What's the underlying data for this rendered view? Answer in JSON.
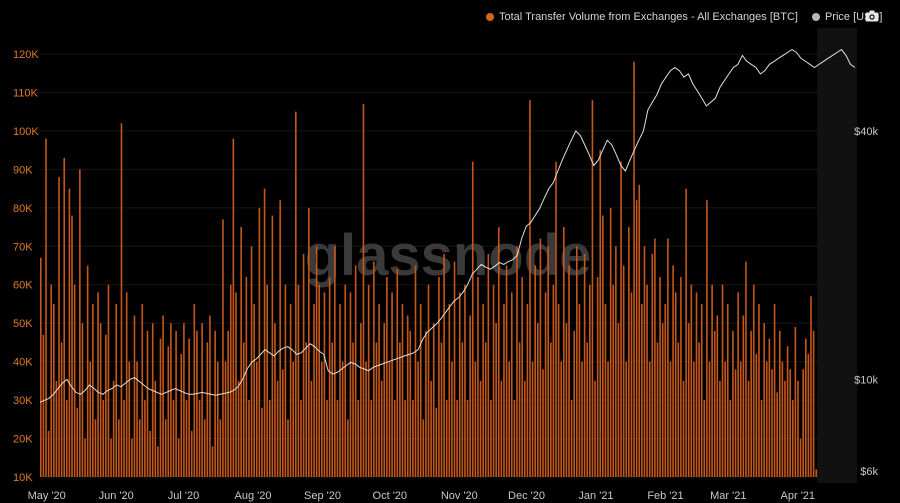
{
  "chart_data": {
    "type": "bar",
    "title": "",
    "watermark": "glassnode",
    "legend": [
      {
        "name": "Total Transfer Volume from Exchanges - All Exchanges [BTC]",
        "color": "#d9641d"
      },
      {
        "name": "Price [USD]",
        "color": "#b9b9b9"
      }
    ],
    "left_axis": {
      "ticks": [
        "120K",
        "110K",
        "100K",
        "90K",
        "80K",
        "70K",
        "60K",
        "50K",
        "40K",
        "30K",
        "20K",
        "10K"
      ],
      "ylim": [
        10000,
        120000
      ]
    },
    "right_axis": {
      "scale": "log",
      "ticks": [
        "$40k",
        "$10k",
        "$6k"
      ],
      "ylim": [
        5800,
        65000
      ]
    },
    "x_axis": {
      "ticks": [
        "May '20",
        "Jun '20",
        "Jul '20",
        "Aug '20",
        "Sep '20",
        "Oct '20",
        "Nov '20",
        "Dec '20",
        "Jan '21",
        "Feb '21",
        "Mar '21",
        "Apr '21"
      ],
      "range": [
        "2020-04-28",
        "2021-04-10"
      ]
    },
    "volume_btc": [
      67000,
      47000,
      98000,
      22000,
      60000,
      55000,
      35000,
      88000,
      45000,
      93000,
      30000,
      85000,
      78000,
      60000,
      28000,
      90000,
      50000,
      20000,
      65000,
      40000,
      55000,
      25000,
      58000,
      50000,
      30000,
      47000,
      60000,
      20000,
      35000,
      55000,
      25000,
      102000,
      30000,
      58000,
      40000,
      20000,
      52000,
      40000,
      25000,
      55000,
      30000,
      48000,
      22000,
      50000,
      35000,
      18000,
      46000,
      52000,
      25000,
      44000,
      50000,
      30000,
      48000,
      20000,
      42000,
      50000,
      30000,
      46000,
      22000,
      55000,
      48000,
      30000,
      50000,
      25000,
      45000,
      52000,
      18000,
      48000,
      40000,
      25000,
      77000,
      40000,
      48000,
      60000,
      98000,
      58000,
      35000,
      75000,
      45000,
      62000,
      30000,
      70000,
      55000,
      40000,
      80000,
      28000,
      85000,
      60000,
      30000,
      78000,
      50000,
      35000,
      82000,
      38000,
      60000,
      25000,
      55000,
      40000,
      105000,
      60000,
      30000,
      68000,
      45000,
      80000,
      35000,
      55000,
      70000,
      60000,
      40000,
      58000,
      30000,
      62000,
      45000,
      70000,
      30000,
      55000,
      40000,
      60000,
      25000,
      58000,
      45000,
      65000,
      30000,
      50000,
      107000,
      40000,
      60000,
      30000,
      66000,
      45000,
      55000,
      35000,
      50000,
      62000,
      40000,
      58000,
      30000,
      64000,
      45000,
      55000,
      30000,
      52000,
      48000,
      30000,
      65000,
      40000,
      55000,
      25000,
      48000,
      60000,
      35000,
      50000,
      28000,
      62000,
      45000,
      68000,
      30000,
      55000,
      40000,
      66000,
      30000,
      58000,
      45000,
      60000,
      30000,
      52000,
      92000,
      40000,
      62000,
      35000,
      55000,
      45000,
      68000,
      30000,
      60000,
      50000,
      75000,
      35000,
      55000,
      65000,
      40000,
      58000,
      30000,
      70000,
      45000,
      62000,
      35000,
      55000,
      108000,
      40000,
      65000,
      50000,
      72000,
      38000,
      58000,
      70000,
      45000,
      60000,
      92000,
      55000,
      40000,
      75000,
      50000,
      65000,
      30000,
      48000,
      70000,
      55000,
      40000,
      68000,
      45000,
      60000,
      108000,
      35000,
      62000,
      95000,
      78000,
      55000,
      40000,
      80000,
      60000,
      70000,
      50000,
      92000,
      65000,
      40000,
      75000,
      58000,
      118000,
      82000,
      86000,
      55000,
      70000,
      60000,
      40000,
      68000,
      72000,
      45000,
      62000,
      50000,
      55000,
      72000,
      40000,
      65000,
      58000,
      45000,
      62000,
      35000,
      85000,
      50000,
      60000,
      40000,
      58000,
      45000,
      55000,
      30000,
      82000,
      40000,
      60000,
      48000,
      52000,
      35000,
      60000,
      40000,
      55000,
      30000,
      48000,
      38000,
      58000,
      40000,
      52000,
      66000,
      35000,
      48000,
      60000,
      42000,
      55000,
      30000,
      50000,
      40000,
      46000,
      38000,
      55000,
      32000,
      48000,
      40000,
      35000,
      44000,
      38000,
      30000,
      49000,
      35000,
      20000,
      38000,
      46000,
      42000,
      57000,
      48000,
      12000
    ],
    "price_usd": [
      8800,
      8900,
      9000,
      9200,
      9500,
      9800,
      10000,
      9600,
      9300,
      9200,
      9400,
      9700,
      9500,
      9300,
      9200,
      9400,
      9500,
      9700,
      9600,
      9800,
      10000,
      10100,
      9900,
      9700,
      9500,
      9400,
      9300,
      9200,
      9300,
      9400,
      9500,
      9400,
      9300,
      9200,
      9200,
      9250,
      9300,
      9250,
      9200,
      9150,
      9200,
      9250,
      9300,
      9400,
      9600,
      10000,
      10600,
      11000,
      11200,
      11500,
      11800,
      11600,
      11400,
      11700,
      11900,
      12000,
      11800,
      11500,
      11600,
      11900,
      12200,
      12000,
      11700,
      11500,
      10500,
      10300,
      10400,
      10600,
      10800,
      11000,
      10900,
      10700,
      10600,
      10500,
      10700,
      10800,
      10900,
      11000,
      11100,
      11200,
      11300,
      11400,
      11500,
      11600,
      11800,
      12500,
      13000,
      13300,
      13600,
      14000,
      14500,
      15000,
      15500,
      15800,
      16300,
      17000,
      18000,
      18500,
      19000,
      18700,
      18500,
      18800,
      19200,
      19000,
      19300,
      19500,
      20000,
      22000,
      23500,
      24000,
      25000,
      26000,
      27500,
      29000,
      30000,
      32000,
      34000,
      36000,
      38000,
      40000,
      39000,
      37000,
      35000,
      33000,
      34000,
      36000,
      38000,
      37000,
      35000,
      33000,
      32000,
      34000,
      36000,
      38000,
      40000,
      45000,
      47000,
      49000,
      52000,
      54000,
      56000,
      57000,
      56000,
      54000,
      55000,
      52000,
      50000,
      48000,
      46000,
      47000,
      48000,
      51000,
      53000,
      55000,
      57000,
      58000,
      61000,
      59000,
      58000,
      57000,
      55000,
      56000,
      58000,
      59000,
      60000,
      61000,
      62000,
      63000,
      62000,
      60000,
      59000,
      58000,
      57000,
      58000,
      59000,
      60000,
      61000,
      62000,
      63000,
      61000,
      58000,
      57000
    ]
  }
}
